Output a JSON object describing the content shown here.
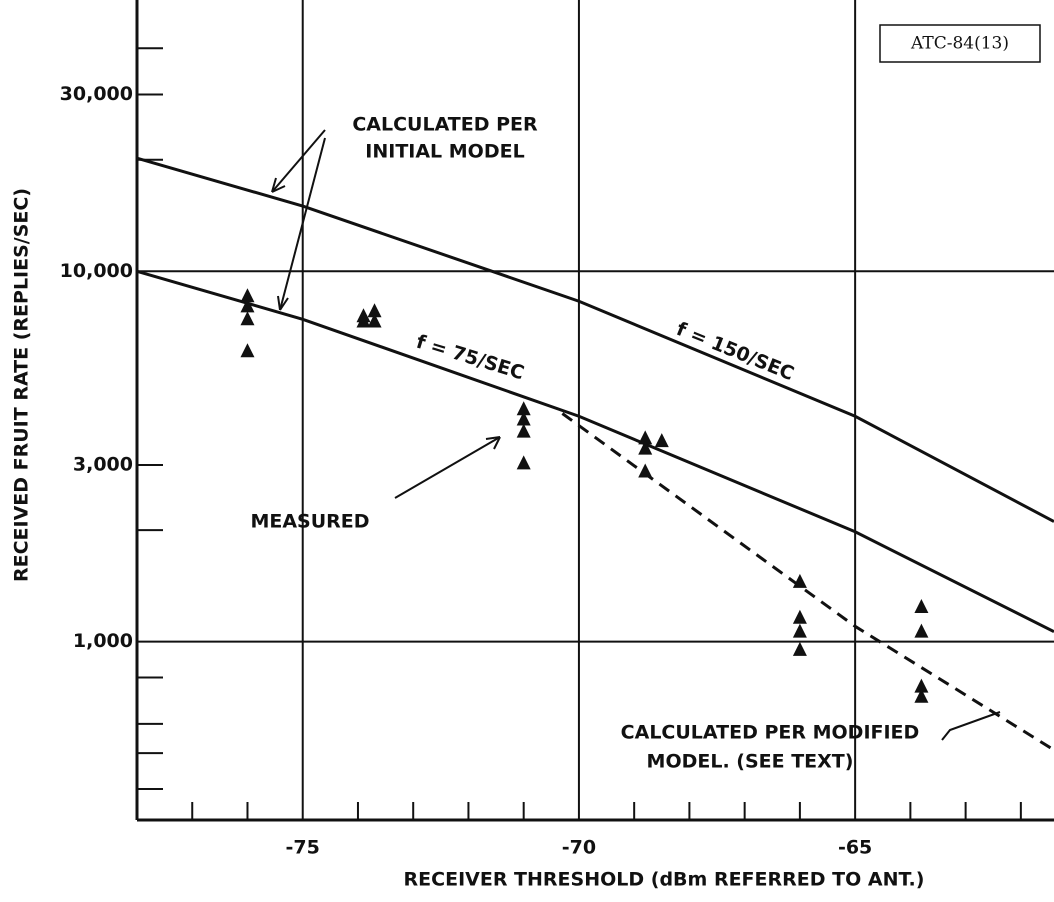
{
  "chart_data": {
    "type": "scatter",
    "tag": "ATC-84(13)",
    "xlabel": "RECEIVER THRESHOLD (dBm REFERRED TO ANT.)",
    "ylabel": "RECEIVED FRUIT RATE (REPLIES/SEC)",
    "xlim": [
      -78,
      -61.4
    ],
    "ylim": [
      330,
      54000
    ],
    "ylog": true,
    "grid": true,
    "color": "#111111",
    "xticks": [
      -75,
      -70,
      -65
    ],
    "xminor_ticks": [
      -77,
      -76,
      -74,
      -73,
      -72,
      -71,
      -69,
      -68,
      -67,
      -66,
      -64,
      -63,
      -62
    ],
    "yticks": [
      {
        "value": 1000,
        "label": "1,000"
      },
      {
        "value": 3000,
        "label": "3,000"
      },
      {
        "value": 10000,
        "label": "10,000"
      },
      {
        "value": 30000,
        "label": "30,000"
      }
    ],
    "yminor_ticks": [
      400,
      500,
      600,
      800,
      2000,
      20000,
      40000
    ],
    "lines": [
      {
        "label": "f = 150/SEC",
        "style": "solid",
        "x": [
          -78,
          -75,
          -70,
          -65,
          -61.4
        ],
        "values": [
          20200,
          15000,
          8300,
          4060,
          2110
        ]
      },
      {
        "label": "f = 75/SEC",
        "style": "solid",
        "x": [
          -78,
          -75,
          -70,
          -65,
          -61.4
        ],
        "values": [
          10000,
          7420,
          4060,
          1980,
          1064
        ]
      },
      {
        "style": "dashed",
        "x": [
          -70.3,
          -65,
          -61.4
        ],
        "values": [
          4130,
          1100,
          510
        ]
      }
    ],
    "points": {
      "x": [
        -76,
        -76,
        -76,
        -76,
        -73.9,
        -73.9,
        -73.7,
        -73.7,
        -71,
        -71,
        -71,
        -71,
        -68.8,
        -68.8,
        -68.8,
        -68.5,
        -66,
        -66,
        -66,
        -66,
        -63.8,
        -63.8,
        -63.8,
        -63.8
      ],
      "values": [
        8560,
        8040,
        7420,
        6080,
        7560,
        7320,
        7800,
        7320,
        4240,
        3980,
        3690,
        3030,
        3540,
        3320,
        2880,
        3480,
        1450,
        1160,
        1064,
        950,
        1240,
        1064,
        756,
        710
      ]
    },
    "annotations": [
      "CALCULATED PER",
      "INITIAL MODEL",
      "MEASURED",
      "CALCULATED PER MODIFIED",
      "MODEL. (SEE TEXT)"
    ]
  }
}
